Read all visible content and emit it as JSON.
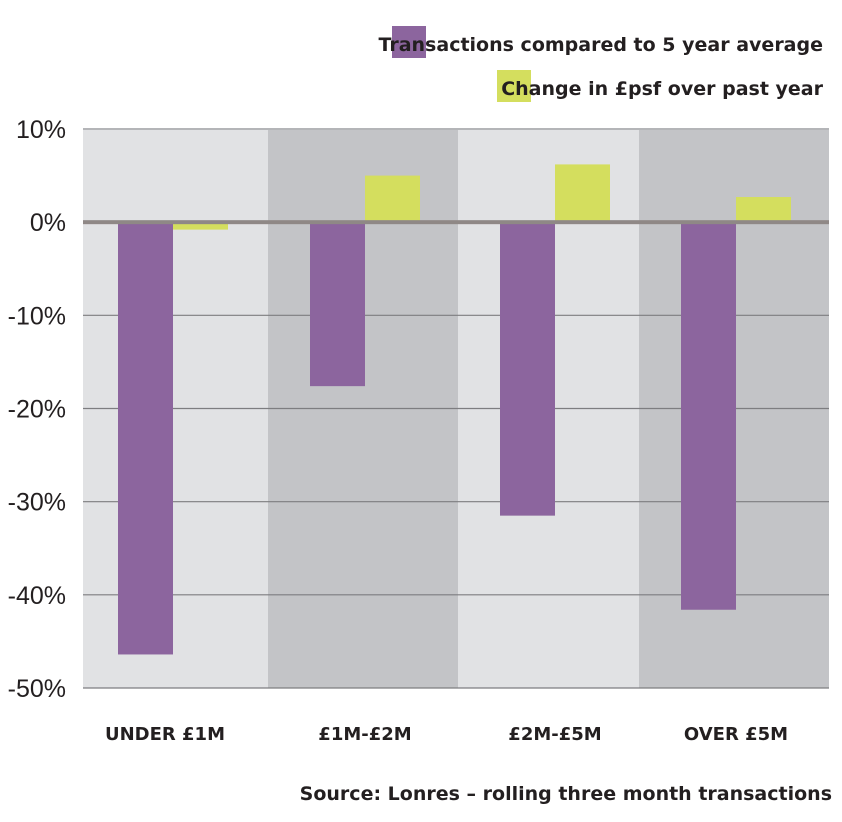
{
  "chart_data": {
    "type": "bar",
    "title": "",
    "xlabel": "",
    "ylabel": "",
    "categories": [
      "UNDER £1M",
      "£1M-£2M",
      "£2M-£5M",
      "OVER £5M"
    ],
    "series": [
      {
        "name": "Transactions compared to 5 year average",
        "color": "#8c659e",
        "values": [
          -46.4,
          -17.6,
          -31.5,
          -41.6
        ]
      },
      {
        "name": "Change in £psf over past year",
        "color": "#d4de5e",
        "values": [
          -0.8,
          5.0,
          6.2,
          2.7
        ]
      }
    ],
    "ylim": [
      -50,
      10
    ],
    "yticks": [
      10,
      0,
      -10,
      -20,
      -30,
      -40,
      -50
    ],
    "ytick_labels": [
      "10%",
      "0%",
      "-10%",
      "-20%",
      "-30%",
      "-40%",
      "-50%"
    ],
    "grid": true,
    "legend": "top-right",
    "band_colors": [
      "#e1e2e4",
      "#c3c4c7"
    ],
    "zero_line_color": "#8f8886",
    "grid_color": "#7d7d80",
    "source": "Source: Lonres – rolling three month transactions"
  }
}
